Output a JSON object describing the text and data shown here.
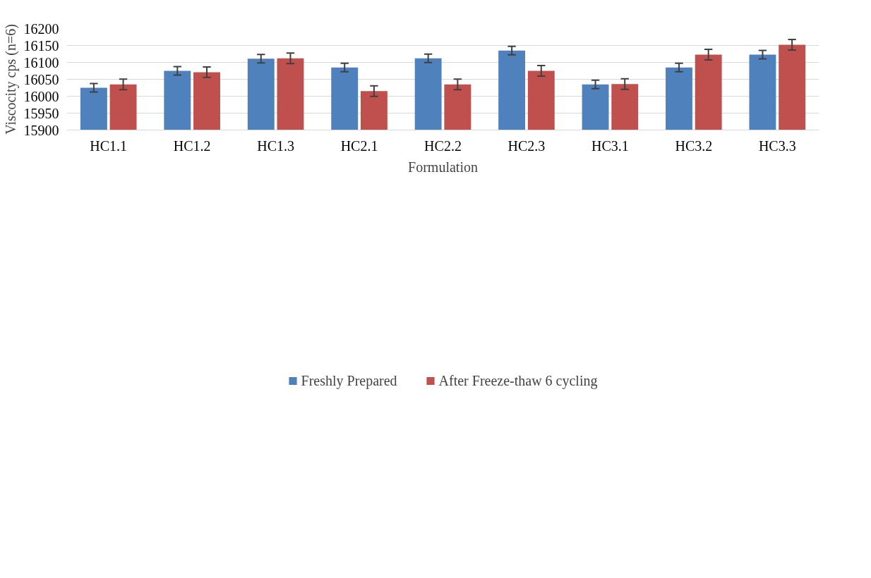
{
  "chart_data": {
    "type": "bar",
    "xlabel": "Formulation",
    "ylabel": "Viscocity cps (n=6)",
    "categories": [
      "HC1.1",
      "HC1.2",
      "HC1.3",
      "HC2.1",
      "HC2.2",
      "HC2.3",
      "HC3.1",
      "HC3.2",
      "HC3.3"
    ],
    "series": [
      {
        "name": "Freshly Prepared",
        "color": "#4f81bd",
        "values": [
          16025,
          16075,
          16111,
          16085,
          16112,
          16135,
          16035,
          16085,
          16123
        ],
        "errors": [
          12.5,
          12.5,
          12.5,
          12.5,
          12.5,
          12.5,
          12.5,
          12.5,
          12.5
        ]
      },
      {
        "name": "After Freeze-thaw 6 cycling",
        "color": "#c0504d",
        "values": [
          16035,
          16071,
          16112,
          16015,
          16035,
          16075,
          16036,
          16123,
          16152
        ],
        "errors": [
          15.5,
          15.5,
          15.5,
          15.5,
          15.5,
          15.5,
          15.5,
          15.5,
          15.5
        ]
      }
    ],
    "ylim": [
      15900,
      16200
    ],
    "yticks": [
      15900,
      15950,
      16000,
      16050,
      16100,
      16150,
      16200
    ],
    "grid": "y",
    "legend": "bottom"
  }
}
